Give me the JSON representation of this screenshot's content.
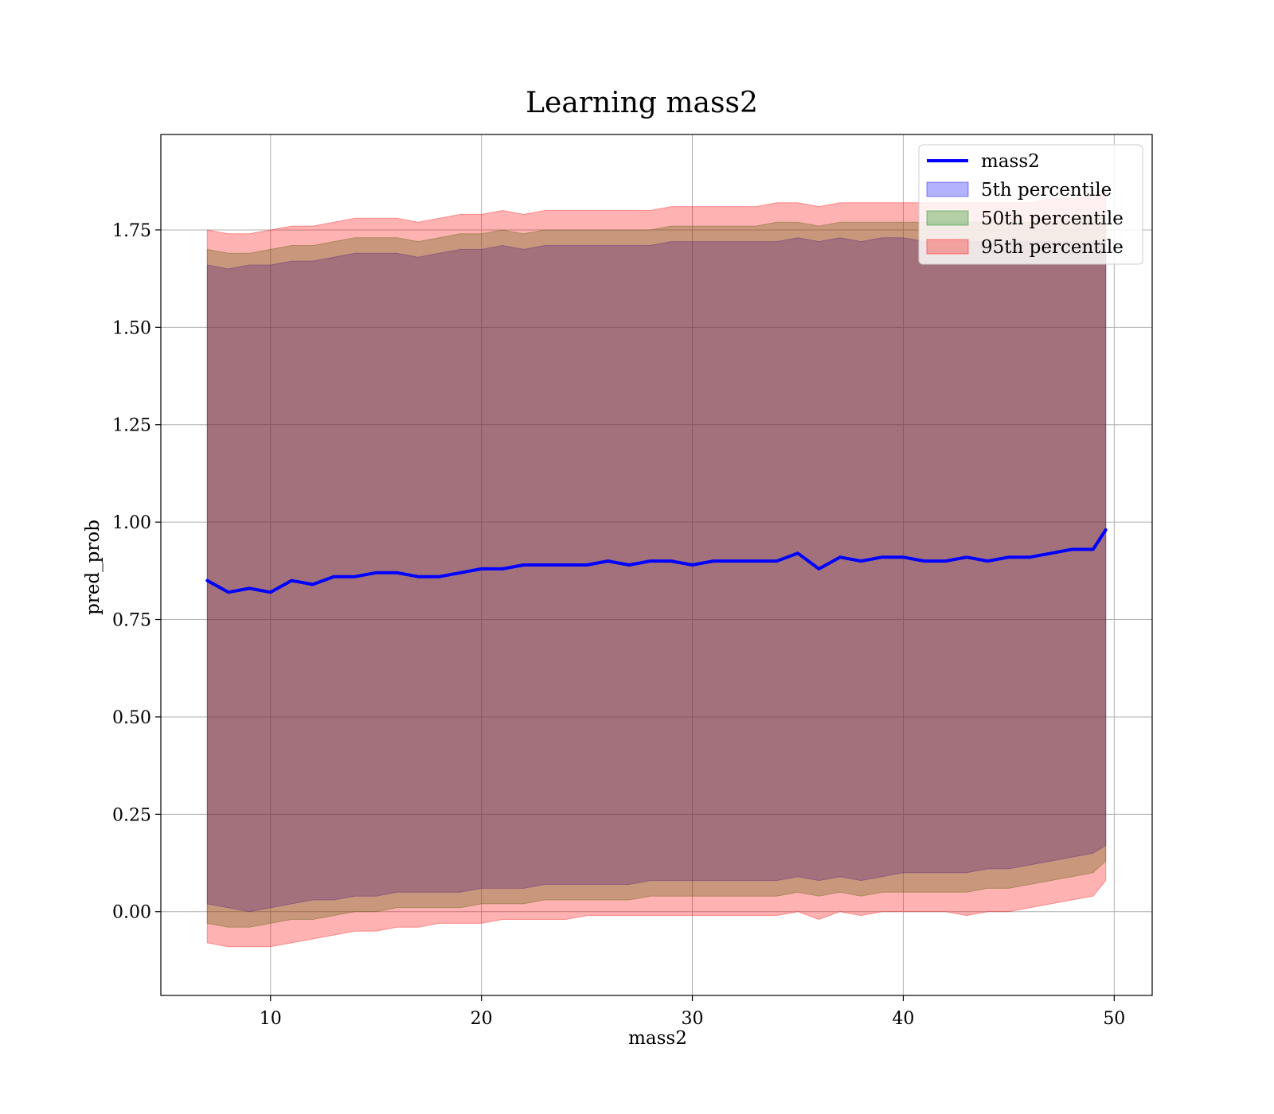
{
  "chart_data": {
    "type": "area",
    "title": "Learning mass2",
    "xlabel": "mass2",
    "ylabel": "pred_prob",
    "xlim": [
      4.8,
      51.8
    ],
    "ylim": [
      -0.215,
      1.995
    ],
    "xticks": [
      10,
      20,
      30,
      40,
      50
    ],
    "yticks": [
      0.0,
      0.25,
      0.5,
      0.75,
      1.0,
      1.25,
      1.5,
      1.75
    ],
    "ytick_labels": [
      "0.00",
      "0.25",
      "0.50",
      "0.75",
      "1.00",
      "1.25",
      "1.50",
      "1.75"
    ],
    "grid": true,
    "legend_position": "top-right",
    "legend": [
      {
        "label": "mass2",
        "kind": "line",
        "color": "#0000ff"
      },
      {
        "label": "5th percentile",
        "kind": "patch",
        "color": "#0000ff"
      },
      {
        "label": "50th percentile",
        "kind": "patch",
        "color": "#008000"
      },
      {
        "label": "95th percentile",
        "kind": "patch",
        "color": "#ff0000"
      }
    ],
    "x": [
      7,
      8,
      9,
      10,
      11,
      12,
      13,
      14,
      15,
      16,
      17,
      18,
      19,
      20,
      21,
      22,
      23,
      24,
      25,
      26,
      27,
      28,
      29,
      30,
      31,
      32,
      33,
      34,
      35,
      36,
      37,
      38,
      39,
      40,
      41,
      42,
      43,
      44,
      45,
      46,
      47,
      48,
      49,
      49.6
    ],
    "series": [
      {
        "name": "mass2",
        "kind": "line",
        "color": "#0000ff",
        "values": [
          0.85,
          0.82,
          0.83,
          0.82,
          0.85,
          0.84,
          0.86,
          0.86,
          0.87,
          0.87,
          0.86,
          0.86,
          0.87,
          0.88,
          0.88,
          0.89,
          0.89,
          0.89,
          0.89,
          0.9,
          0.89,
          0.9,
          0.9,
          0.89,
          0.9,
          0.9,
          0.9,
          0.9,
          0.92,
          0.88,
          0.91,
          0.9,
          0.91,
          0.91,
          0.9,
          0.9,
          0.91,
          0.9,
          0.91,
          0.91,
          0.92,
          0.93,
          0.93,
          0.98
        ]
      },
      {
        "name": "5th percentile",
        "kind": "band",
        "color": "#0000ff",
        "upper": [
          1.66,
          1.65,
          1.66,
          1.66,
          1.67,
          1.67,
          1.68,
          1.69,
          1.69,
          1.69,
          1.68,
          1.69,
          1.7,
          1.7,
          1.71,
          1.7,
          1.71,
          1.71,
          1.71,
          1.71,
          1.71,
          1.71,
          1.72,
          1.72,
          1.72,
          1.72,
          1.72,
          1.72,
          1.73,
          1.72,
          1.73,
          1.72,
          1.73,
          1.73,
          1.72,
          1.72,
          1.72,
          1.72,
          1.72,
          1.72,
          1.72,
          1.72,
          1.72,
          1.72
        ],
        "lower": [
          0.02,
          0.01,
          0.0,
          0.01,
          0.02,
          0.03,
          0.03,
          0.04,
          0.04,
          0.05,
          0.05,
          0.05,
          0.05,
          0.06,
          0.06,
          0.06,
          0.07,
          0.07,
          0.07,
          0.07,
          0.07,
          0.08,
          0.08,
          0.08,
          0.08,
          0.08,
          0.08,
          0.08,
          0.09,
          0.08,
          0.09,
          0.08,
          0.09,
          0.1,
          0.1,
          0.1,
          0.1,
          0.11,
          0.11,
          0.12,
          0.13,
          0.14,
          0.15,
          0.17
        ]
      },
      {
        "name": "50th percentile",
        "kind": "band",
        "color": "#008000",
        "upper": [
          1.7,
          1.69,
          1.69,
          1.7,
          1.71,
          1.71,
          1.72,
          1.73,
          1.73,
          1.73,
          1.72,
          1.73,
          1.74,
          1.74,
          1.75,
          1.74,
          1.75,
          1.75,
          1.75,
          1.75,
          1.75,
          1.75,
          1.76,
          1.76,
          1.76,
          1.76,
          1.76,
          1.77,
          1.77,
          1.76,
          1.77,
          1.77,
          1.77,
          1.77,
          1.77,
          1.77,
          1.77,
          1.77,
          1.77,
          1.77,
          1.77,
          1.78,
          1.78,
          1.78
        ],
        "lower": [
          -0.03,
          -0.04,
          -0.04,
          -0.03,
          -0.02,
          -0.02,
          -0.01,
          0.0,
          0.0,
          0.01,
          0.01,
          0.01,
          0.01,
          0.02,
          0.02,
          0.02,
          0.03,
          0.03,
          0.03,
          0.03,
          0.03,
          0.04,
          0.04,
          0.04,
          0.04,
          0.04,
          0.04,
          0.04,
          0.05,
          0.04,
          0.05,
          0.04,
          0.05,
          0.05,
          0.05,
          0.05,
          0.05,
          0.06,
          0.06,
          0.07,
          0.08,
          0.09,
          0.1,
          0.13
        ]
      },
      {
        "name": "95th percentile",
        "kind": "band",
        "color": "#ff0000",
        "upper": [
          1.75,
          1.74,
          1.74,
          1.75,
          1.76,
          1.76,
          1.77,
          1.78,
          1.78,
          1.78,
          1.77,
          1.78,
          1.79,
          1.79,
          1.8,
          1.79,
          1.8,
          1.8,
          1.8,
          1.8,
          1.8,
          1.8,
          1.81,
          1.81,
          1.81,
          1.81,
          1.81,
          1.82,
          1.82,
          1.81,
          1.82,
          1.82,
          1.82,
          1.82,
          1.82,
          1.82,
          1.82,
          1.82,
          1.82,
          1.82,
          1.83,
          1.83,
          1.84,
          1.86
        ],
        "lower": [
          -0.08,
          -0.09,
          -0.09,
          -0.09,
          -0.08,
          -0.07,
          -0.06,
          -0.05,
          -0.05,
          -0.04,
          -0.04,
          -0.03,
          -0.03,
          -0.03,
          -0.02,
          -0.02,
          -0.02,
          -0.02,
          -0.01,
          -0.01,
          -0.01,
          -0.01,
          -0.01,
          -0.01,
          -0.01,
          -0.01,
          -0.01,
          -0.01,
          0.0,
          -0.02,
          0.0,
          -0.01,
          0.0,
          0.0,
          0.0,
          0.0,
          -0.01,
          0.0,
          0.0,
          0.01,
          0.02,
          0.03,
          0.04,
          0.08
        ]
      }
    ]
  }
}
